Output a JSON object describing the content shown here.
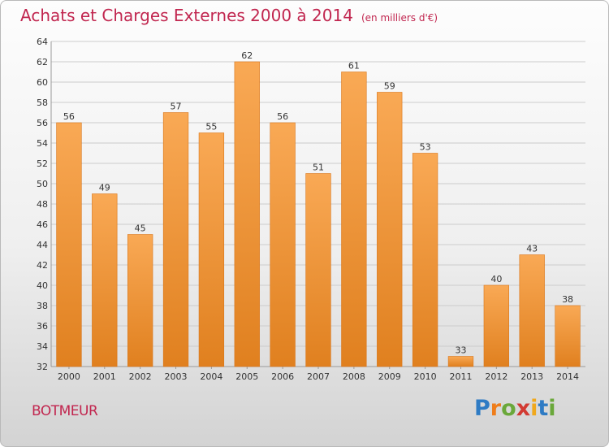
{
  "header": {
    "title": "Achats et Charges Externes 2000 à 2014",
    "subtitle": "(en milliers d'€)"
  },
  "footer": {
    "commune": "BOTMEUR",
    "logo_text": "Proxiti"
  },
  "colors": {
    "bar_light": "#f9a955",
    "bar_dark": "#e0801f",
    "title": "#c1264f",
    "grid": "#cccccc"
  },
  "chart_data": {
    "type": "bar",
    "title": "Achats et Charges Externes 2000 à 2014",
    "subtitle": "(en milliers d'€)",
    "xlabel": "",
    "ylabel": "",
    "categories": [
      "2000",
      "2001",
      "2002",
      "2003",
      "2004",
      "2005",
      "2006",
      "2007",
      "2008",
      "2009",
      "2010",
      "2011",
      "2012",
      "2013",
      "2014"
    ],
    "values": [
      56,
      49,
      45,
      57,
      55,
      62,
      56,
      51,
      61,
      59,
      53,
      33,
      40,
      43,
      38
    ],
    "ylim": [
      32,
      64
    ],
    "yticks": [
      32,
      34,
      36,
      38,
      40,
      42,
      44,
      46,
      48,
      50,
      52,
      54,
      56,
      58,
      60,
      62,
      64
    ],
    "grid": true,
    "data_labels": true
  }
}
